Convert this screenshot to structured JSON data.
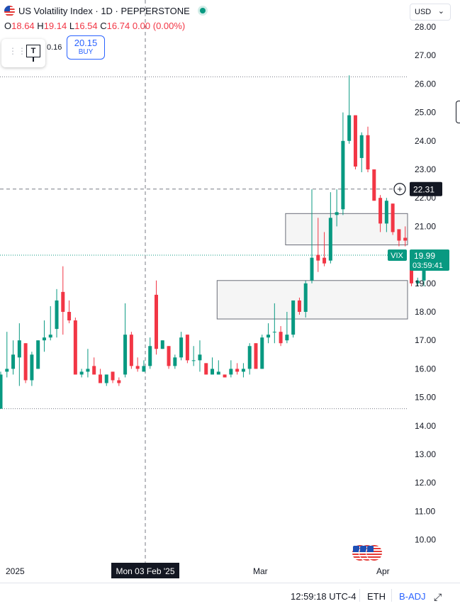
{
  "header": {
    "flag_icon": "us-flag-icon",
    "symbol_title": "US Volatility Index · 1D · PEPPERSTONE",
    "status_icon": "market-open-dot-icon",
    "ohlc": {
      "o_label": "O",
      "o_value": "18.64",
      "h_label": "H",
      "h_value": "19.14",
      "l_label": "L",
      "l_value": "16.54",
      "c_label": "C",
      "c_value": "16.74",
      "change": "0.00 (0.00%)"
    },
    "sell_mini": "0.16",
    "buy_price": "20.15",
    "buy_label": "BUY",
    "currency": "USD"
  },
  "footer": {
    "time": "12:59:18 UTC-4",
    "session": "ETH",
    "adjustment": "B-ADJ"
  },
  "chart_data": {
    "type": "candlestick",
    "symbol": "VIX",
    "title": "US Volatility Index · 1D · PEPPERSTONE",
    "ylim": [
      9.5,
      28.5
    ],
    "y_ticks": [
      "28.00",
      "27.00",
      "26.00",
      "25.00",
      "24.00",
      "23.00",
      "22.00",
      "21.00",
      "20.00",
      "19.00",
      "18.00",
      "17.00",
      "16.00",
      "15.00",
      "14.00",
      "13.00",
      "12.00",
      "11.00",
      "10.00"
    ],
    "x_labels": [
      "2025",
      "Mar",
      "Apr"
    ],
    "crosshair": {
      "x_label": "Mon 03 Feb '25",
      "y_label": "22.31",
      "y_value": 22.31
    },
    "last_price": {
      "symbol": "VIX",
      "price": "19.99",
      "value": 19.99,
      "countdown": "03:59:41"
    },
    "reference_lines": [
      26.25,
      14.6
    ],
    "zones": [
      {
        "from_index": 46,
        "to_index": 58,
        "low": 20.35,
        "high": 21.45
      },
      {
        "from_index": 35,
        "to_index": 58,
        "low": 17.75,
        "high": 19.1
      }
    ],
    "candles": [
      {
        "o": 14.6,
        "h": 15.9,
        "l": 14.6,
        "c": 15.8
      },
      {
        "o": 15.9,
        "h": 17.3,
        "l": 15.7,
        "c": 16.0
      },
      {
        "o": 16.0,
        "h": 17.0,
        "l": 15.8,
        "c": 16.5
      },
      {
        "o": 16.4,
        "h": 17.6,
        "l": 15.4,
        "c": 17.0
      },
      {
        "o": 16.9,
        "h": 16.9,
        "l": 15.5,
        "c": 15.6
      },
      {
        "o": 15.6,
        "h": 16.6,
        "l": 15.4,
        "c": 16.5
      },
      {
        "o": 16.0,
        "h": 17.0,
        "l": 16.0,
        "c": 17.0
      },
      {
        "o": 17.0,
        "h": 17.7,
        "l": 16.6,
        "c": 17.1
      },
      {
        "o": 17.1,
        "h": 18.2,
        "l": 17.0,
        "c": 17.2
      },
      {
        "o": 17.4,
        "h": 18.8,
        "l": 17.1,
        "c": 18.4
      },
      {
        "o": 18.7,
        "h": 19.6,
        "l": 17.2,
        "c": 18.0
      },
      {
        "o": 18.0,
        "h": 18.4,
        "l": 17.6,
        "c": 17.7
      },
      {
        "o": 17.7,
        "h": 17.8,
        "l": 15.8,
        "c": 15.8
      },
      {
        "o": 15.8,
        "h": 16.0,
        "l": 15.7,
        "c": 15.9
      },
      {
        "o": 15.9,
        "h": 16.7,
        "l": 15.7,
        "c": 16.0
      },
      {
        "o": 16.1,
        "h": 16.4,
        "l": 15.8,
        "c": 15.8
      },
      {
        "o": 15.8,
        "h": 16.0,
        "l": 15.5,
        "c": 15.5
      },
      {
        "o": 15.5,
        "h": 15.8,
        "l": 15.4,
        "c": 15.8
      },
      {
        "o": 15.9,
        "h": 15.9,
        "l": 15.5,
        "c": 15.6
      },
      {
        "o": 15.6,
        "h": 15.7,
        "l": 15.4,
        "c": 15.5
      },
      {
        "o": 15.8,
        "h": 18.3,
        "l": 15.7,
        "c": 17.2
      },
      {
        "o": 17.2,
        "h": 17.3,
        "l": 16.0,
        "c": 16.1
      },
      {
        "o": 16.1,
        "h": 16.4,
        "l": 15.9,
        "c": 16.0
      },
      {
        "o": 15.9,
        "h": 16.3,
        "l": 15.9,
        "c": 16.1
      },
      {
        "o": 16.1,
        "h": 17.1,
        "l": 16.0,
        "c": 16.8
      },
      {
        "o": 18.6,
        "h": 19.1,
        "l": 16.5,
        "c": 16.7
      },
      {
        "o": 16.7,
        "h": 17.0,
        "l": 16.7,
        "c": 17.0
      },
      {
        "o": 16.8,
        "h": 16.8,
        "l": 16.0,
        "c": 16.1
      },
      {
        "o": 16.1,
        "h": 16.5,
        "l": 16.0,
        "c": 16.4
      },
      {
        "o": 16.4,
        "h": 17.3,
        "l": 16.3,
        "c": 17.1
      },
      {
        "o": 17.2,
        "h": 17.2,
        "l": 16.2,
        "c": 16.3
      },
      {
        "o": 16.3,
        "h": 16.8,
        "l": 16.1,
        "c": 16.3
      },
      {
        "o": 16.3,
        "h": 17.0,
        "l": 15.9,
        "c": 16.5
      },
      {
        "o": 16.2,
        "h": 16.2,
        "l": 15.8,
        "c": 15.8
      },
      {
        "o": 15.8,
        "h": 16.4,
        "l": 15.8,
        "c": 16.0
      },
      {
        "o": 15.8,
        "h": 16.3,
        "l": 15.8,
        "c": 15.9
      },
      {
        "o": 15.8,
        "h": 15.8,
        "l": 15.7,
        "c": 15.7
      },
      {
        "o": 15.8,
        "h": 16.3,
        "l": 15.7,
        "c": 16.0
      },
      {
        "o": 16.0,
        "h": 16.2,
        "l": 15.8,
        "c": 15.9
      },
      {
        "o": 15.9,
        "h": 16.2,
        "l": 15.7,
        "c": 16.0
      },
      {
        "o": 16.0,
        "h": 16.9,
        "l": 15.8,
        "c": 16.8
      },
      {
        "o": 16.9,
        "h": 16.9,
        "l": 16.0,
        "c": 16.0
      },
      {
        "o": 16.0,
        "h": 17.2,
        "l": 16.0,
        "c": 17.1
      },
      {
        "o": 17.1,
        "h": 17.6,
        "l": 16.9,
        "c": 17.2
      },
      {
        "o": 17.3,
        "h": 18.3,
        "l": 16.9,
        "c": 17.3
      },
      {
        "o": 17.3,
        "h": 17.5,
        "l": 16.8,
        "c": 16.9
      },
      {
        "o": 17.0,
        "h": 18.0,
        "l": 16.9,
        "c": 17.2
      },
      {
        "o": 17.2,
        "h": 18.3,
        "l": 17.1,
        "c": 18.4
      },
      {
        "o": 18.4,
        "h": 18.5,
        "l": 17.9,
        "c": 18.0
      },
      {
        "o": 18.0,
        "h": 19.1,
        "l": 17.8,
        "c": 19.0
      },
      {
        "o": 19.1,
        "h": 22.3,
        "l": 19.0,
        "c": 19.9
      },
      {
        "o": 20.0,
        "h": 21.3,
        "l": 19.4,
        "c": 19.8
      },
      {
        "o": 19.9,
        "h": 20.8,
        "l": 19.6,
        "c": 19.7
      },
      {
        "o": 19.8,
        "h": 22.2,
        "l": 19.7,
        "c": 21.3
      },
      {
        "o": 21.4,
        "h": 22.3,
        "l": 21.0,
        "c": 21.5
      },
      {
        "o": 21.6,
        "h": 25.0,
        "l": 21.4,
        "c": 24.0
      },
      {
        "o": 24.0,
        "h": 26.3,
        "l": 23.9,
        "c": 24.9
      },
      {
        "o": 24.9,
        "h": 24.9,
        "l": 23.0,
        "c": 23.1
      },
      {
        "o": 23.4,
        "h": 24.3,
        "l": 22.9,
        "c": 24.2
      },
      {
        "o": 24.2,
        "h": 24.5,
        "l": 22.9,
        "c": 23.0
      },
      {
        "o": 23.0,
        "h": 23.0,
        "l": 21.9,
        "c": 21.9
      },
      {
        "o": 22.0,
        "h": 22.1,
        "l": 20.8,
        "c": 21.1
      },
      {
        "o": 21.1,
        "h": 22.0,
        "l": 20.8,
        "c": 21.9
      },
      {
        "o": 21.8,
        "h": 21.8,
        "l": 20.7,
        "c": 20.8
      },
      {
        "o": 20.9,
        "h": 20.9,
        "l": 20.3,
        "c": 20.5
      },
      {
        "o": 20.6,
        "h": 21.0,
        "l": 20.3,
        "c": 20.5
      },
      {
        "o": 19.9,
        "h": 19.9,
        "l": 18.9,
        "c": 19.0
      },
      {
        "o": 19.0,
        "h": 19.2,
        "l": 18.9,
        "c": 19.1
      },
      {
        "o": 19.1,
        "h": 20.0,
        "l": 18.9,
        "c": 19.99
      }
    ]
  }
}
